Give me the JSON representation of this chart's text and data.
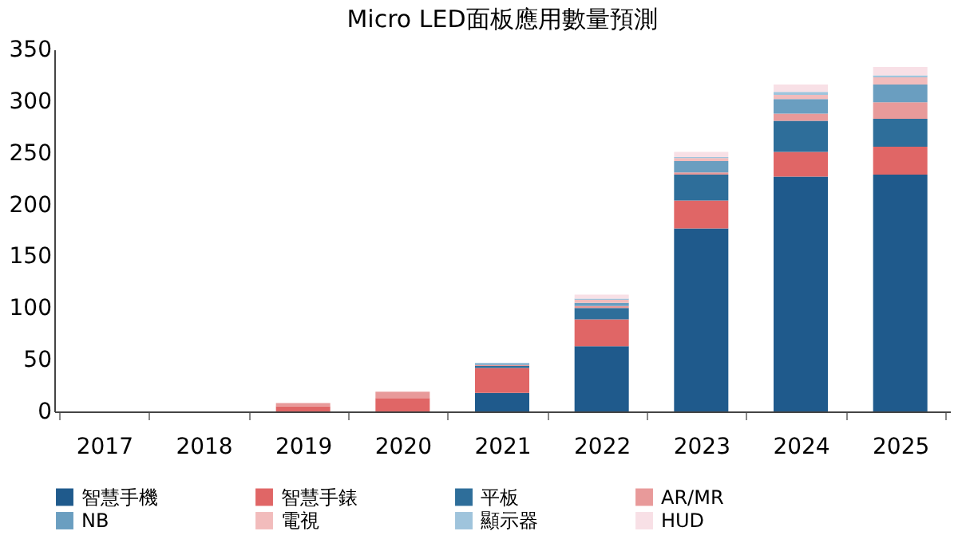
{
  "chart_data": {
    "type": "bar",
    "title": "Micro LED面板應用數量預測",
    "stacked": true,
    "categories": [
      "2017",
      "2018",
      "2019",
      "2020",
      "2021",
      "2022",
      "2023",
      "2024",
      "2025"
    ],
    "series": [
      {
        "name": "智慧手機",
        "color": "#1f5a8c",
        "values": [
          0,
          0,
          0,
          0,
          18,
          63,
          177,
          227,
          229
        ]
      },
      {
        "name": "智慧手錶",
        "color": "#e06666",
        "values": [
          0,
          0,
          5,
          13,
          24,
          26,
          27,
          24,
          27
        ]
      },
      {
        "name": "平板",
        "color": "#2e6e9a",
        "values": [
          0,
          0,
          0,
          0,
          2,
          11,
          25,
          30,
          27
        ]
      },
      {
        "name": "AR/MR",
        "color": "#e89a9a",
        "values": [
          0,
          0,
          3,
          6,
          1,
          2,
          2,
          7,
          16
        ]
      },
      {
        "name": "NB",
        "color": "#6a9ec0",
        "values": [
          0,
          0,
          0,
          0,
          1,
          3,
          11,
          14,
          17
        ]
      },
      {
        "name": "電視",
        "color": "#f2bcbc",
        "values": [
          0,
          0,
          0,
          0,
          null,
          3,
          3,
          4,
          7
        ]
      },
      {
        "name": "顯示器",
        "color": "#9fc4dc",
        "values": [
          0,
          0,
          0,
          0,
          1,
          1,
          1,
          3,
          2
        ]
      },
      {
        "name": "HUD",
        "color": "#f8e0e6",
        "values": [
          0,
          0,
          0,
          0,
          null,
          4,
          5,
          7,
          8
        ]
      }
    ],
    "ylim": [
      0,
      350
    ],
    "yticks": [
      0,
      50,
      100,
      150,
      200,
      250,
      300,
      350
    ],
    "grid": false,
    "legend": "bottom"
  }
}
